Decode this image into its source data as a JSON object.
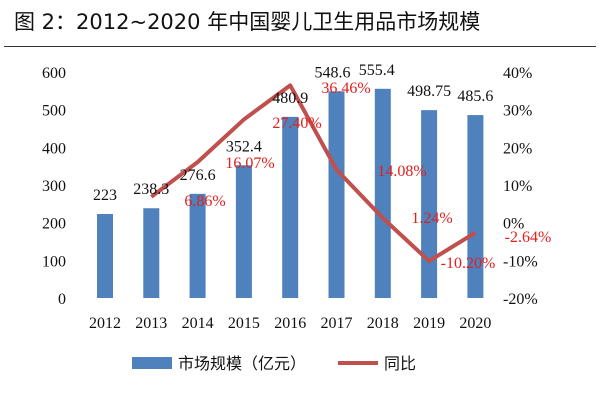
{
  "title": "图 2：2012~2020 年中国婴儿卫生用品市场规模",
  "chart_data": {
    "type": "bar+line",
    "title": "图 2：2012~2020 年中国婴儿卫生用品市场规模",
    "categories": [
      "2012",
      "2013",
      "2014",
      "2015",
      "2016",
      "2017",
      "2018",
      "2019",
      "2020"
    ],
    "series": [
      {
        "name": "市场规模（亿元）",
        "type": "bar",
        "axis": "left",
        "color": "#4f81bd",
        "values": [
          223,
          238.3,
          276.6,
          352.4,
          480.9,
          548.6,
          555.4,
          498.75,
          485.6
        ],
        "labels": [
          "223",
          "238.3",
          "276.6",
          "352.4",
          "480.9",
          "548.6",
          "555.4",
          "498.75",
          "485.6"
        ]
      },
      {
        "name": "同比",
        "type": "line",
        "axis": "right",
        "color": "#c0504d",
        "values": [
          null,
          6.86,
          16.07,
          27.4,
          36.46,
          14.08,
          1.24,
          -10.2,
          -2.64
        ],
        "labels": [
          "",
          "6.86%",
          "16.07%",
          "27.40%",
          "36.46%",
          "14.08%",
          "1.24%",
          "-10.20%",
          "-2.64%"
        ]
      }
    ],
    "left_axis": {
      "ylim": [
        0,
        600
      ],
      "ticks": [
        "0",
        "100",
        "200",
        "300",
        "400",
        "500",
        "600"
      ]
    },
    "right_axis": {
      "ylim": [
        -20,
        40
      ],
      "ticks": [
        "-20%",
        "-10%",
        "0%",
        "10%",
        "20%",
        "30%",
        "40%"
      ]
    },
    "grid": false,
    "legend": "bottom"
  }
}
